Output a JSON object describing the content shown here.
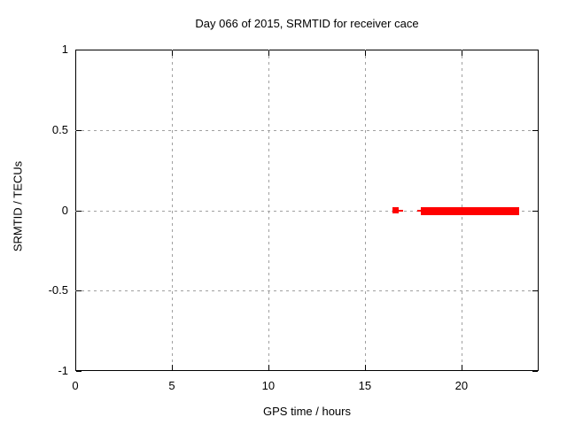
{
  "title": "Day 066 of 2015, SRMTID for receiver cace",
  "colors": {
    "data": "#ff0000",
    "grid": "#a0a0a0",
    "axis": "#000000",
    "background": "#ffffff",
    "text": "#000000"
  },
  "chart_data": {
    "type": "scatter",
    "title": "Day 066 of 2015, SRMTID for receiver cace",
    "xlabel": "GPS time / hours",
    "ylabel": "SRMTID / TECUs",
    "xlim": [
      0,
      24
    ],
    "ylim": [
      -1,
      1
    ],
    "xticks": [
      0,
      5,
      10,
      15,
      20
    ],
    "yticks": [
      -1,
      -0.5,
      0,
      0.5,
      1
    ],
    "grid": true,
    "grid_style": "dashed",
    "legend": false,
    "marker": "filled-square",
    "series": [
      {
        "name": "SRMTID",
        "color": "#ff0000",
        "points": [
          {
            "x": 16.6,
            "y": 0
          }
        ],
        "runs": [
          {
            "x_start": 17.9,
            "x_end": 23.0,
            "y": 0
          }
        ]
      }
    ]
  }
}
